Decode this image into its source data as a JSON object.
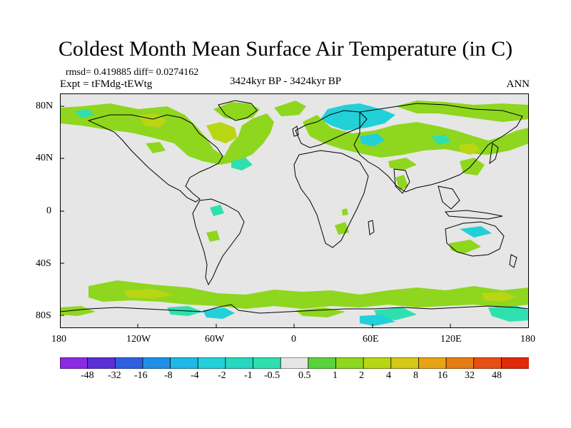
{
  "title": "Coldest Month Mean Surface Air Temperature (in C)",
  "rmsd_text": "rmsd= 0.419885 diff= 0.0274162",
  "expt_text": "Expt = tFMdg-tEWtg",
  "period_text": "3424kyr BP - 3424kyr BP",
  "season_text": "ANN",
  "lat_labels": [
    "80N",
    "40N",
    "0",
    "40S",
    "80S"
  ],
  "lon_labels": [
    "180",
    "120W",
    "60W",
    "0",
    "60E",
    "120E",
    "180"
  ],
  "colorbar": {
    "labels": [
      "-48",
      "-32",
      "-16",
      "-8",
      "-4",
      "-2",
      "-1",
      "-0.5",
      "0.5",
      "1",
      "2",
      "4",
      "8",
      "16",
      "32",
      "48"
    ],
    "colors": [
      "#8a2be2",
      "#5a2fd6",
      "#2e5fe0",
      "#1f8fe6",
      "#20b8e6",
      "#22d0d8",
      "#26d8c0",
      "#2ee0b0",
      "#e6e6e6",
      "#5ad23c",
      "#8fd61e",
      "#b8d614",
      "#d6c814",
      "#e6a414",
      "#e67c14",
      "#e65014",
      "#e02a0a"
    ]
  },
  "legend_colors": {
    "neutral": "#e6e6e6",
    "green_light": "#8fd61e",
    "green_yellow": "#b8d614",
    "cyan": "#22d0d8",
    "teal": "#2ee0b0",
    "blue": "#1f8fe6"
  }
}
